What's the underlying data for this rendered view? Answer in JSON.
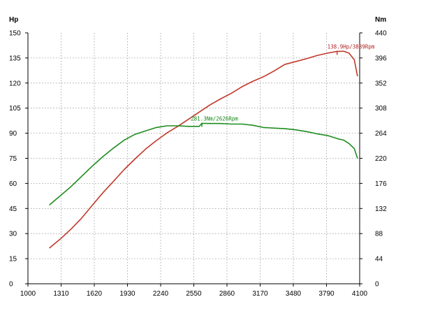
{
  "chart_data": {
    "type": "line",
    "left_unit": "Hp",
    "right_unit": "Nm",
    "x_ticks": [
      "1000",
      "1310",
      "1620",
      "1930",
      "2240",
      "2550",
      "2860",
      "3170",
      "3480",
      "3790",
      "4100"
    ],
    "y_left_ticks": [
      "0",
      "15",
      "30",
      "45",
      "60",
      "75",
      "90",
      "105",
      "120",
      "135",
      "150"
    ],
    "y_right_ticks": [
      "0",
      "44",
      "88",
      "132",
      "176",
      "220",
      "264",
      "308",
      "352",
      "396",
      "440"
    ],
    "xlim": [
      1000,
      4100
    ],
    "ylim_left": [
      0,
      150
    ],
    "ylim_right": [
      0,
      440
    ],
    "grid": true,
    "series": [
      {
        "axis": "left",
        "color": "#c0392b",
        "x": [
          1200,
          1300,
          1400,
          1500,
          1600,
          1700,
          1800,
          1900,
          2000,
          2100,
          2200,
          2300,
          2400,
          2500,
          2600,
          2700,
          2800,
          2900,
          3000,
          3100,
          3200,
          3300,
          3400,
          3500,
          3600,
          3700,
          3800,
          3889,
          3950,
          4000,
          4050,
          4080
        ],
        "values": [
          21.3,
          26.6,
          32.5,
          39.1,
          46.8,
          54.4,
          61.3,
          68.3,
          74.6,
          80.5,
          85.6,
          90.2,
          94.1,
          98.3,
          102.6,
          106.9,
          110.5,
          113.8,
          117.8,
          121.0,
          123.7,
          127.2,
          131.1,
          132.8,
          134.5,
          136.4,
          137.9,
          138.9,
          139.0,
          137.9,
          133.9,
          124.1
        ]
      },
      {
        "axis": "right",
        "color": "#1e8c1e",
        "x": [
          1200,
          1300,
          1400,
          1500,
          1600,
          1700,
          1800,
          1900,
          2000,
          2100,
          2200,
          2300,
          2400,
          2500,
          2600,
          2626,
          2700,
          2800,
          2900,
          3000,
          3100,
          3200,
          3300,
          3400,
          3500,
          3600,
          3700,
          3800,
          3900,
          3950,
          4000,
          4050,
          4080
        ],
        "values": [
          138,
          154,
          170,
          188,
          206,
          223,
          238,
          252,
          262,
          268,
          274,
          277,
          277,
          276,
          276,
          281.3,
          281,
          281,
          280,
          280,
          278,
          274,
          273,
          272,
          270,
          267,
          263,
          260,
          254,
          252,
          246,
          237,
          220
        ]
      }
    ],
    "annotations": [
      {
        "series": 0,
        "x": 3889,
        "y": 138.9,
        "text": "138.9Hp/3889Rpm"
      },
      {
        "series": 1,
        "x": 2626,
        "y": 281.3,
        "text": "281.3Nm/2626Rpm"
      }
    ]
  }
}
